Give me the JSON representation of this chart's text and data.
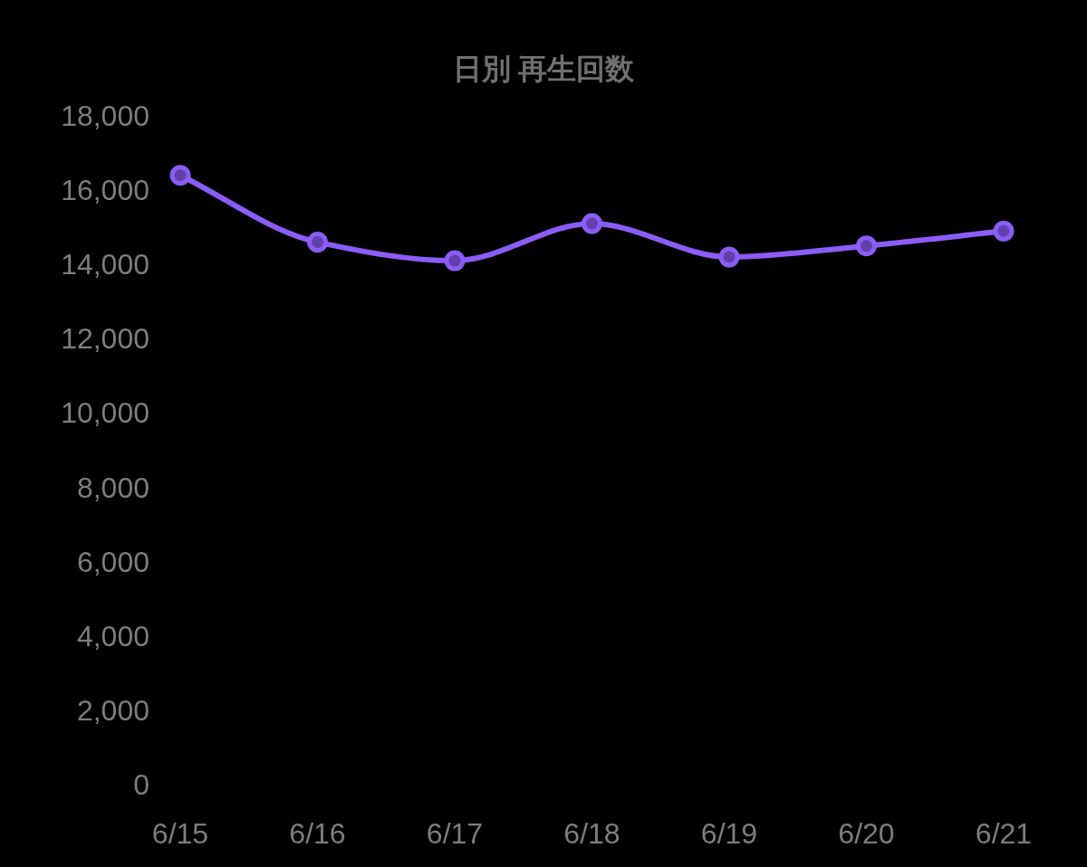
{
  "chart_data": {
    "type": "line",
    "title": "日別 再生回数",
    "categories": [
      "6/15",
      "6/16",
      "6/17",
      "6/18",
      "6/19",
      "6/20",
      "6/21"
    ],
    "series": [
      {
        "color": "#8b5cf6",
        "values": [
          16400,
          14600,
          14100,
          15100,
          14200,
          14500,
          14900
        ]
      }
    ],
    "ylim": [
      0,
      18000
    ],
    "yticks": [
      0,
      {
        "value": 2000,
        "label": "2,000"
      },
      {
        "value": 4000,
        "label": "4,000"
      },
      {
        "value": 6000,
        "label": "6,000"
      },
      {
        "value": 8000,
        "label": "8,000"
      },
      {
        "value": 10000,
        "label": "10,000"
      },
      {
        "value": 12000,
        "label": "12,000"
      },
      {
        "value": 14000,
        "label": "14,000"
      },
      {
        "value": 16000,
        "label": "16,000"
      },
      {
        "value": 18000,
        "label": "18,000"
      }
    ],
    "marker": "circle",
    "line_style": "solid"
  }
}
